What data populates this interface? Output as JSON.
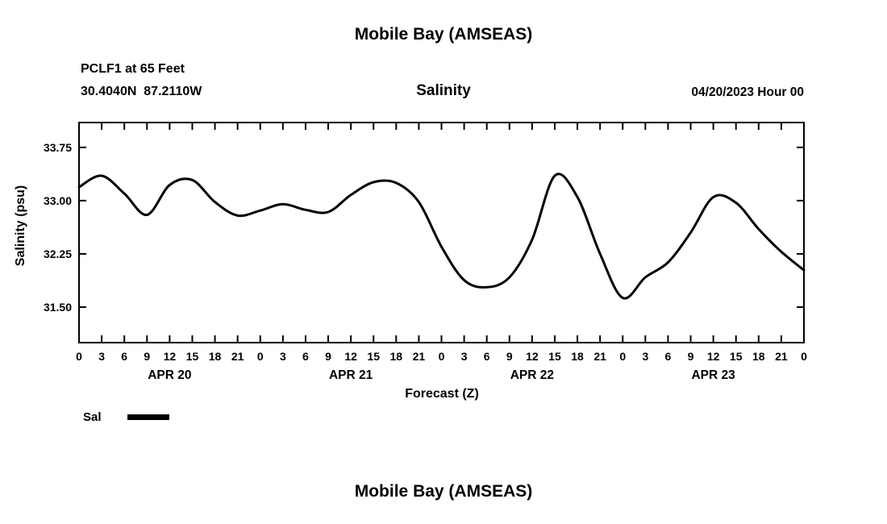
{
  "page": {
    "top_title": "Mobile Bay (AMSEAS)",
    "bottom_title": "Mobile Bay (AMSEAS)",
    "background_color": "#ffffff",
    "foreground_color": "#000000"
  },
  "header": {
    "station_line": "PCLF1 at 65 Feet",
    "location_line": "30.4040N  87.2110W",
    "plot_title": "Salinity",
    "datetime_label": "04/20/2023 Hour 00"
  },
  "legend": {
    "items": [
      {
        "label": "Sal",
        "color": "#000000",
        "swatch": "thick-line"
      }
    ]
  },
  "chart_data": {
    "type": "line",
    "title": "Salinity",
    "xlabel": "Forecast (Z)",
    "ylabel": "Salinity (psu)",
    "grid": false,
    "legend_position": "bottom-left",
    "x_total_hours": 96,
    "x_tick_step_hours": 3,
    "x_tick_hour_labels": [
      "0",
      "3",
      "6",
      "9",
      "12",
      "15",
      "18",
      "21"
    ],
    "day_labels": [
      "APR 20",
      "APR 21",
      "APR 22",
      "APR 23"
    ],
    "ylim": [
      31.0,
      34.1
    ],
    "yticks": [
      31.5,
      32.25,
      33.0,
      33.75
    ],
    "ytick_labels": [
      "31.50",
      "32.25",
      "33.00",
      "33.75"
    ],
    "series": [
      {
        "name": "Sal",
        "color": "#000000",
        "x_hours": [
          0,
          3,
          6,
          9,
          12,
          15,
          18,
          21,
          24,
          27,
          30,
          33,
          36,
          39,
          42,
          45,
          48,
          51,
          54,
          57,
          60,
          63,
          66,
          69,
          72,
          75,
          78,
          81,
          84,
          87,
          90,
          93,
          96
        ],
        "values": [
          33.19,
          33.35,
          33.1,
          32.8,
          33.22,
          33.29,
          32.98,
          32.79,
          32.86,
          32.95,
          32.87,
          32.84,
          33.08,
          33.26,
          33.25,
          32.98,
          32.35,
          31.88,
          31.78,
          31.92,
          32.45,
          33.35,
          33.05,
          32.25,
          31.63,
          31.92,
          32.13,
          32.55,
          33.05,
          32.97,
          32.6,
          32.28,
          32.02
        ]
      }
    ]
  }
}
